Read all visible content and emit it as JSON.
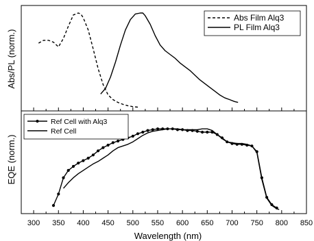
{
  "chart_data": [
    {
      "type": "line",
      "panel": "top",
      "ylabel": "Abs/PL (norm.)",
      "xlim": [
        275,
        850
      ],
      "y_ticks": "none",
      "legend_position": "top-right",
      "series": [
        {
          "name": "Abs Film Alq3",
          "style": "dashed",
          "x": [
            310,
            320,
            330,
            340,
            350,
            360,
            370,
            380,
            390,
            395,
            400,
            410,
            420,
            430,
            440,
            450,
            460,
            470,
            480,
            490,
            500,
            510
          ],
          "y": [
            0.68,
            0.71,
            0.71,
            0.69,
            0.64,
            0.73,
            0.86,
            0.98,
            1.0,
            0.99,
            0.95,
            0.82,
            0.62,
            0.41,
            0.24,
            0.13,
            0.08,
            0.05,
            0.03,
            0.015,
            0.005,
            0.0
          ]
        },
        {
          "name": "PL Film Alq3",
          "style": "solid",
          "x": [
            435,
            445,
            455,
            465,
            475,
            485,
            495,
            505,
            515,
            520,
            525,
            535,
            545,
            555,
            565,
            575,
            585,
            595,
            605,
            615,
            625,
            635,
            645,
            655,
            665,
            675,
            685,
            695,
            705,
            712
          ],
          "y": [
            0.14,
            0.2,
            0.32,
            0.48,
            0.66,
            0.82,
            0.93,
            0.99,
            1.0,
            1.0,
            0.97,
            0.88,
            0.76,
            0.66,
            0.6,
            0.56,
            0.52,
            0.47,
            0.43,
            0.39,
            0.34,
            0.29,
            0.25,
            0.21,
            0.17,
            0.13,
            0.1,
            0.08,
            0.06,
            0.05
          ]
        }
      ]
    },
    {
      "type": "line",
      "panel": "bottom",
      "xlabel": "Wavelength (nm)",
      "ylabel": "EQE (norm.)",
      "xlim": [
        275,
        850
      ],
      "x_ticks": [
        300,
        350,
        400,
        450,
        500,
        550,
        600,
        650,
        700,
        750,
        800,
        850
      ],
      "y_ticks": "none",
      "legend_position": "top-left",
      "series": [
        {
          "name": "Ref Cell with Alq3",
          "style": "solid-markers",
          "x": [
            340,
            350,
            360,
            370,
            380,
            390,
            400,
            410,
            420,
            430,
            440,
            450,
            460,
            470,
            480,
            490,
            500,
            510,
            520,
            530,
            540,
            550,
            560,
            570,
            580,
            590,
            600,
            610,
            620,
            630,
            640,
            650,
            660,
            670,
            680,
            690,
            700,
            710,
            720,
            730,
            740,
            750,
            760,
            770,
            780,
            790
          ],
          "y": [
            0.06,
            0.2,
            0.4,
            0.49,
            0.54,
            0.58,
            0.61,
            0.64,
            0.68,
            0.73,
            0.77,
            0.8,
            0.83,
            0.85,
            0.87,
            0.89,
            0.91,
            0.94,
            0.96,
            0.98,
            0.99,
            1.0,
            1.0,
            1.0,
            1.0,
            0.99,
            0.99,
            0.98,
            0.98,
            0.97,
            0.96,
            0.96,
            0.96,
            0.93,
            0.89,
            0.84,
            0.82,
            0.81,
            0.81,
            0.8,
            0.79,
            0.72,
            0.4,
            0.16,
            0.07,
            0.03
          ]
        },
        {
          "name": "Ref Cell",
          "style": "solid",
          "x": [
            360,
            370,
            380,
            390,
            400,
            410,
            420,
            430,
            440,
            450,
            460,
            470,
            480,
            490,
            500,
            510,
            520,
            530,
            540,
            550,
            560,
            570,
            580,
            590,
            600,
            610,
            620,
            630,
            640,
            650,
            660,
            670,
            680,
            690,
            700,
            710,
            720,
            730,
            740,
            750,
            760,
            770,
            780,
            790,
            795
          ],
          "y": [
            0.27,
            0.34,
            0.4,
            0.45,
            0.49,
            0.53,
            0.57,
            0.6,
            0.64,
            0.68,
            0.73,
            0.77,
            0.79,
            0.81,
            0.84,
            0.88,
            0.92,
            0.95,
            0.97,
            0.98,
            0.99,
            1.0,
            1.0,
            1.0,
            0.99,
            0.99,
            0.99,
            0.99,
            1.0,
            1.0,
            0.98,
            0.93,
            0.88,
            0.84,
            0.83,
            0.82,
            0.82,
            0.81,
            0.79,
            0.71,
            0.38,
            0.15,
            0.06,
            0.02,
            0.01
          ]
        }
      ]
    }
  ]
}
